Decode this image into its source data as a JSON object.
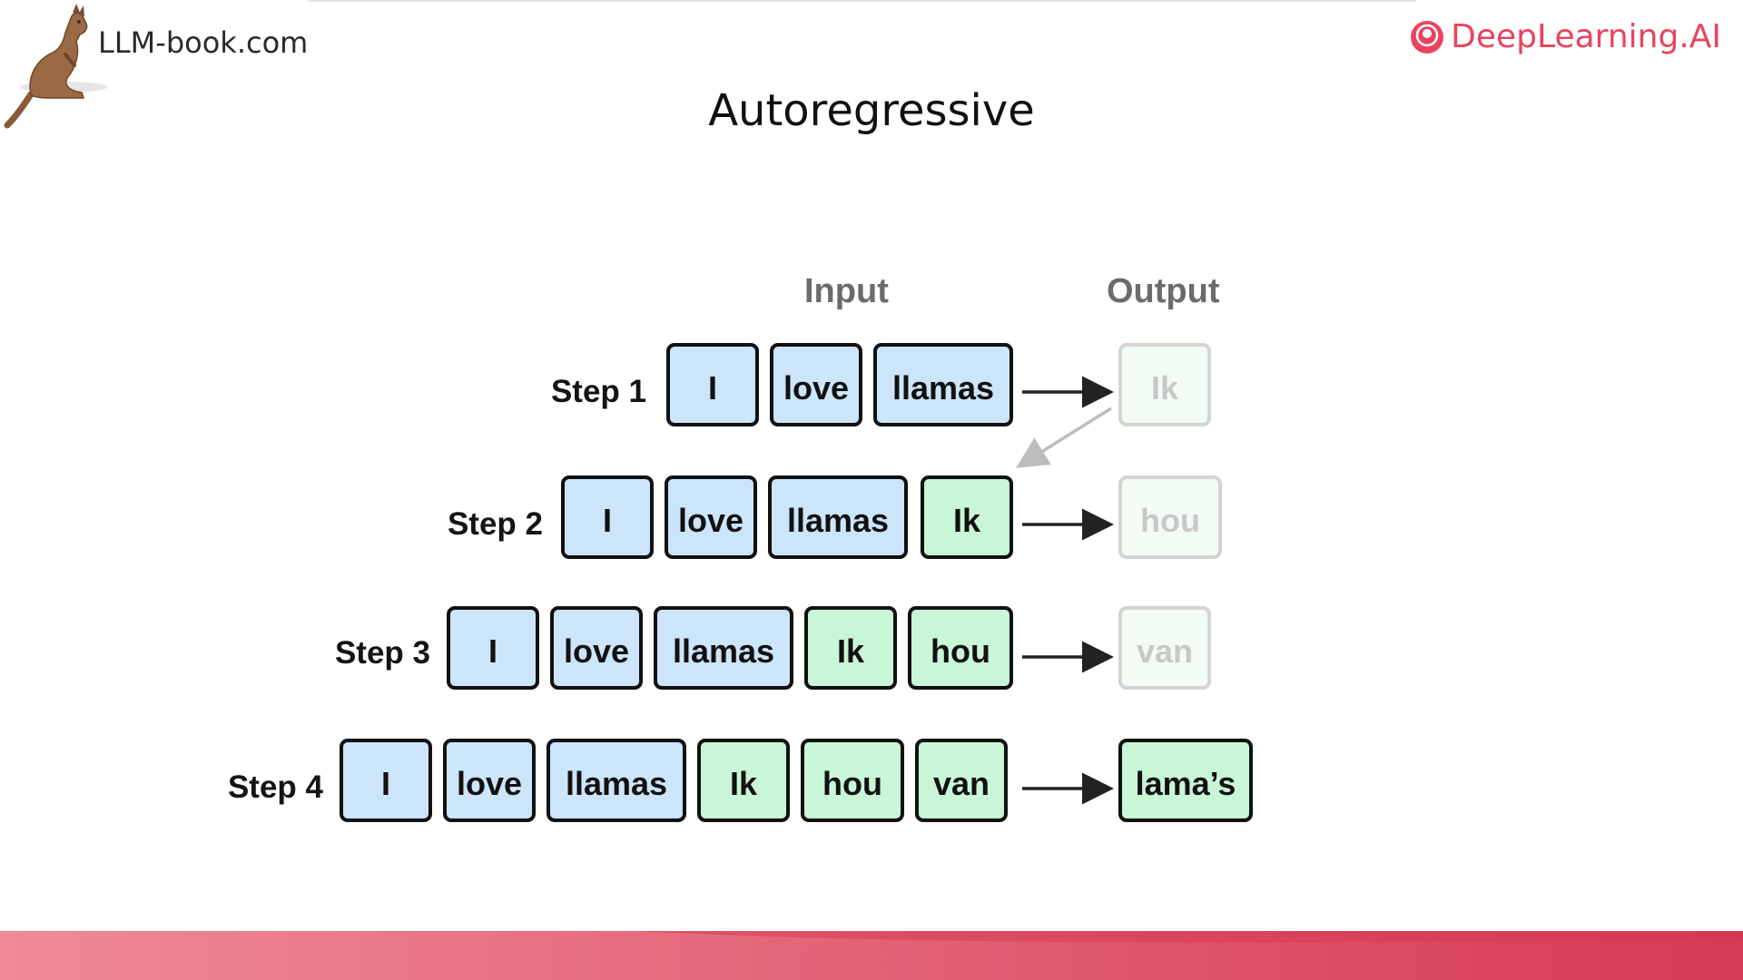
{
  "header": {
    "brand_site": "LLM-book.com",
    "brand_logo": "DeepLearning.AI",
    "logo_icon": "deeplearning-ai-icon",
    "mascot_icon": "kangaroo-icon"
  },
  "slide": {
    "title": "Autoregressive",
    "input_header": "Input",
    "output_header": "Output"
  },
  "colors": {
    "input_token": "#cce5fb",
    "generated_token": "#c9f6d6",
    "accent": "#e9445f"
  },
  "steps": [
    {
      "label": "Step 1",
      "input": [
        {
          "t": "I",
          "kind": "input"
        },
        {
          "t": "love",
          "kind": "input"
        },
        {
          "t": "llamas",
          "kind": "input"
        }
      ],
      "output": "Ik",
      "output_state": "faded"
    },
    {
      "label": "Step 2",
      "input": [
        {
          "t": "I",
          "kind": "input"
        },
        {
          "t": "love",
          "kind": "input"
        },
        {
          "t": "llamas",
          "kind": "input"
        },
        {
          "t": "Ik",
          "kind": "generated"
        }
      ],
      "output": "hou",
      "output_state": "faded"
    },
    {
      "label": "Step 3",
      "input": [
        {
          "t": "I",
          "kind": "input"
        },
        {
          "t": "love",
          "kind": "input"
        },
        {
          "t": "llamas",
          "kind": "input"
        },
        {
          "t": "Ik",
          "kind": "generated"
        },
        {
          "t": "hou",
          "kind": "generated"
        }
      ],
      "output": "van",
      "output_state": "faded"
    },
    {
      "label": "Step 4",
      "input": [
        {
          "t": "I",
          "kind": "input"
        },
        {
          "t": "love",
          "kind": "input"
        },
        {
          "t": "llamas",
          "kind": "input"
        },
        {
          "t": "Ik",
          "kind": "generated"
        },
        {
          "t": "hou",
          "kind": "generated"
        },
        {
          "t": "van",
          "kind": "generated"
        }
      ],
      "output": "lama’s",
      "output_state": "active"
    }
  ]
}
